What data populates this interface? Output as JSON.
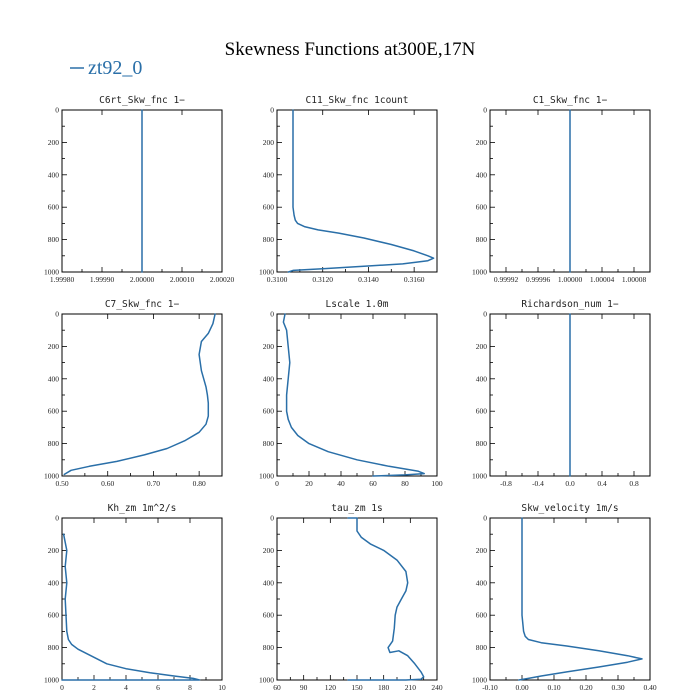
{
  "figure": {
    "title": "Skewness Functions at300E,17N",
    "legend": {
      "label": "zt92_0",
      "color": "#2a6fa8"
    }
  },
  "chart_data": [
    {
      "type": "line",
      "title": "C6rt_Skw_fnc   1−",
      "xlim": [
        1.9998,
        2.0002
      ],
      "xticks": [
        "1.99980",
        "1.99990",
        "2.00000",
        "2.00010",
        "2.00020"
      ],
      "xtick_values": [
        1.9998,
        1.9999,
        2.0,
        2.0001,
        2.0002
      ],
      "ylim": [
        0,
        1000
      ],
      "y_inverted": true,
      "yticks": [
        0,
        200,
        400,
        600,
        800,
        1000
      ],
      "series": [
        {
          "x": [
            2.0,
            2.0
          ],
          "y": [
            0,
            1000
          ]
        }
      ]
    },
    {
      "type": "line",
      "title": "C11_Skw_fnc   1count",
      "xlim": [
        0.31,
        0.317
      ],
      "xticks": [
        "0.3100",
        "0.3120",
        "0.3140",
        "0.3160"
      ],
      "xtick_values": [
        0.31,
        0.312,
        0.314,
        0.316
      ],
      "ylim": [
        0,
        1000
      ],
      "y_inverted": true,
      "yticks": [
        0,
        200,
        400,
        600,
        800,
        1000
      ],
      "series": [
        {
          "x": [
            0.3107,
            0.3107,
            0.3107,
            0.3107,
            0.31075,
            0.3108,
            0.3109,
            0.3112,
            0.3118,
            0.3127,
            0.3138,
            0.315,
            0.316,
            0.3166,
            0.31685,
            0.3166,
            0.3155,
            0.3138,
            0.312,
            0.3107,
            0.3105
          ],
          "y": [
            0,
            200,
            400,
            600,
            650,
            680,
            700,
            720,
            740,
            760,
            790,
            830,
            870,
            900,
            915,
            930,
            950,
            965,
            980,
            990,
            1000
          ]
        }
      ]
    },
    {
      "type": "line",
      "title": "C1_Skw_fnc   1−",
      "xlim": [
        0.9999,
        1.0001
      ],
      "xticks": [
        "0.99992",
        "0.99996",
        "1.00000",
        "1.00004",
        "1.00008"
      ],
      "xtick_values": [
        0.99992,
        0.99996,
        1.0,
        1.00004,
        1.00008
      ],
      "ylim": [
        0,
        1000
      ],
      "y_inverted": true,
      "yticks": [
        0,
        200,
        400,
        600,
        800,
        1000
      ],
      "series": [
        {
          "x": [
            1.0,
            1.0
          ],
          "y": [
            0,
            1000
          ]
        }
      ]
    },
    {
      "type": "line",
      "title": "C7_Skw_fnc   1−",
      "xlim": [
        0.5,
        0.85
      ],
      "xticks": [
        "0.50",
        "0.60",
        "0.70",
        "0.80"
      ],
      "xtick_values": [
        0.5,
        0.6,
        0.7,
        0.8
      ],
      "ylim": [
        0,
        1000
      ],
      "y_inverted": true,
      "yticks": [
        0,
        200,
        400,
        600,
        800,
        1000
      ],
      "series": [
        {
          "x": [
            0.835,
            0.83,
            0.82,
            0.805,
            0.8,
            0.805,
            0.81,
            0.815,
            0.818,
            0.82,
            0.82,
            0.815,
            0.8,
            0.77,
            0.73,
            0.68,
            0.62,
            0.56,
            0.52,
            0.505
          ],
          "y": [
            0,
            60,
            120,
            170,
            250,
            350,
            400,
            450,
            500,
            550,
            630,
            680,
            730,
            780,
            830,
            870,
            910,
            940,
            965,
            990
          ]
        }
      ]
    },
    {
      "type": "line",
      "title": "Lscale   1.0m",
      "xlim": [
        0,
        100
      ],
      "xticks": [
        "0",
        "20",
        "40",
        "60",
        "80",
        "100"
      ],
      "xtick_values": [
        0,
        20,
        40,
        60,
        80,
        100
      ],
      "ylim": [
        0,
        1000
      ],
      "y_inverted": true,
      "yticks": [
        0,
        200,
        400,
        600,
        800,
        1000
      ],
      "series": [
        {
          "x": [
            5,
            4,
            6,
            7,
            8,
            7,
            6,
            6,
            7,
            9,
            13,
            20,
            32,
            50,
            70,
            88,
            92,
            80,
            60
          ],
          "y": [
            0,
            50,
            100,
            200,
            300,
            400,
            500,
            600,
            650,
            700,
            750,
            800,
            850,
            900,
            940,
            970,
            985,
            993,
            1000
          ]
        }
      ]
    },
    {
      "type": "line",
      "title": "Richardson_num   1−",
      "xlim": [
        -1,
        1
      ],
      "xticks": [
        "-0.8",
        "-0.4",
        "0.0",
        "0.4",
        "0.8"
      ],
      "xtick_values": [
        -0.8,
        -0.4,
        0.0,
        0.4,
        0.8
      ],
      "ylim": [
        0,
        1000
      ],
      "y_inverted": true,
      "yticks": [
        0,
        200,
        400,
        600,
        800,
        1000
      ],
      "series": [
        {
          "x": [
            0.0,
            0.0
          ],
          "y": [
            0,
            1000
          ]
        }
      ]
    },
    {
      "type": "line",
      "title": "Kh_zm   1m^2/s",
      "xlim": [
        0,
        10
      ],
      "xticks": [
        "0",
        "2",
        "4",
        "6",
        "8",
        "10"
      ],
      "xtick_values": [
        0,
        2,
        4,
        6,
        8,
        10
      ],
      "ylim": [
        0,
        1000
      ],
      "y_inverted": true,
      "yticks": [
        0,
        200,
        400,
        600,
        800,
        1000
      ],
      "series": [
        {
          "x": [
            0.1,
            0.2,
            0.3,
            0.2,
            0.3,
            0.2,
            0.25,
            0.3,
            0.4,
            0.6,
            1.0,
            1.6,
            2.2,
            2.8,
            4.0,
            5.5,
            7.0,
            8.2,
            8.6,
            8.0,
            0
          ],
          "y": [
            100,
            150,
            200,
            300,
            400,
            500,
            600,
            700,
            750,
            780,
            810,
            840,
            870,
            900,
            930,
            955,
            975,
            990,
            1000,
            1000,
            1000
          ]
        }
      ]
    },
    {
      "type": "line",
      "title": "tau_zm   1s",
      "xlim": [
        60,
        240
      ],
      "xticks": [
        "60",
        "90",
        "120",
        "150",
        "180",
        "210",
        "240"
      ],
      "xtick_values": [
        60,
        90,
        120,
        150,
        180,
        210,
        240
      ],
      "ylim": [
        0,
        1000
      ],
      "y_inverted": true,
      "yticks": [
        0,
        200,
        400,
        600,
        800,
        1000
      ],
      "series": [
        {
          "x": [
            140,
            150,
            150,
            155,
            165,
            180,
            195,
            205,
            207,
            205,
            200,
            195,
            193,
            192,
            190,
            185,
            187,
            197,
            207,
            215,
            222,
            225,
            222,
            205,
            175,
            140
          ],
          "y": [
            0,
            0,
            80,
            120,
            160,
            200,
            260,
            330,
            400,
            450,
            500,
            550,
            600,
            680,
            760,
            800,
            830,
            820,
            850,
            900,
            950,
            980,
            995,
            1000,
            1000,
            1000
          ]
        }
      ]
    },
    {
      "type": "line",
      "title": "Skw_velocity   1m/s",
      "xlim": [
        -0.1,
        0.4
      ],
      "xticks": [
        "-0.10",
        "0.00",
        "0.10",
        "0.20",
        "0.30",
        "0.40"
      ],
      "xtick_values": [
        -0.1,
        0.0,
        0.1,
        0.2,
        0.3,
        0.4
      ],
      "ylim": [
        0,
        1000
      ],
      "y_inverted": true,
      "yticks": [
        0,
        200,
        400,
        600,
        800,
        1000
      ],
      "series": [
        {
          "x": [
            0.0,
            0.0,
            0.0,
            0.0,
            0.0,
            0.005,
            0.01,
            0.02,
            0.06,
            0.14,
            0.24,
            0.33,
            0.375,
            0.33,
            0.24,
            0.14,
            0.06,
            0.02,
            -0.01
          ],
          "y": [
            0,
            100,
            200,
            400,
            600,
            700,
            730,
            750,
            770,
            790,
            820,
            850,
            870,
            890,
            920,
            950,
            975,
            990,
            1000
          ]
        }
      ]
    }
  ]
}
